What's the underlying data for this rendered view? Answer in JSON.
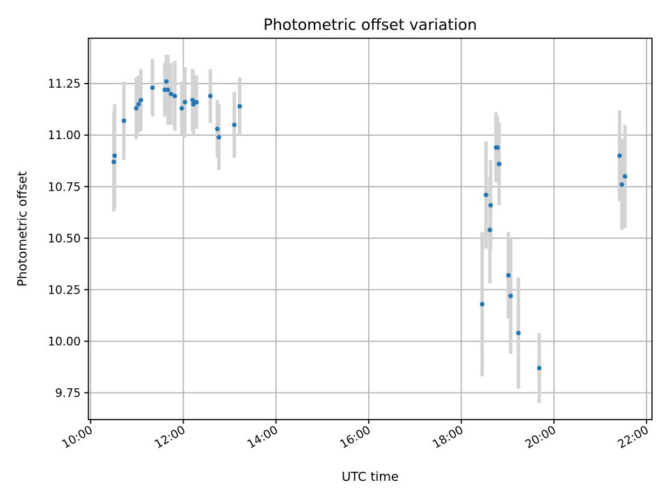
{
  "chart_data": {
    "type": "scatter",
    "title": "Photometric offset variation",
    "xlabel": "UTC time",
    "ylabel": "Photometric offset",
    "x_unit": "time of day (UTC), HH:MM",
    "xlim": [
      "09:57",
      "22:07"
    ],
    "ylim": [
      9.62,
      11.47
    ],
    "x_ticks": [
      "10:00",
      "12:00",
      "14:00",
      "16:00",
      "18:00",
      "20:00",
      "22:00"
    ],
    "y_ticks": [
      "9.75",
      "10.00",
      "10.25",
      "10.50",
      "10.75",
      "11.00",
      "11.25"
    ],
    "x_tick_rotation_deg": 30,
    "grid": true,
    "legend": "none",
    "colors": {
      "points": "#1f77b4",
      "error_bars": "#d3d3d3",
      "grid": "#b0b0b0"
    },
    "points": [
      {
        "t": "10:30",
        "y": 10.87,
        "err": 0.24
      },
      {
        "t": "10:31",
        "y": 10.9,
        "err": 0.25
      },
      {
        "t": "10:43",
        "y": 11.07,
        "err": 0.19
      },
      {
        "t": "10:59",
        "y": 11.13,
        "err": 0.15
      },
      {
        "t": "11:02",
        "y": 11.15,
        "err": 0.14
      },
      {
        "t": "11:05",
        "y": 11.17,
        "err": 0.15
      },
      {
        "t": "11:20",
        "y": 11.23,
        "err": 0.14
      },
      {
        "t": "11:36",
        "y": 11.22,
        "err": 0.13
      },
      {
        "t": "11:38",
        "y": 11.26,
        "err": 0.13
      },
      {
        "t": "11:40",
        "y": 11.22,
        "err": 0.17
      },
      {
        "t": "11:44",
        "y": 11.2,
        "err": 0.15
      },
      {
        "t": "11:49",
        "y": 11.19,
        "err": 0.17
      },
      {
        "t": "11:58",
        "y": 11.13,
        "err": 0.13
      },
      {
        "t": "12:02",
        "y": 11.16,
        "err": 0.17
      },
      {
        "t": "12:12",
        "y": 11.17,
        "err": 0.15
      },
      {
        "t": "12:13",
        "y": 11.15,
        "err": 0.15
      },
      {
        "t": "12:17",
        "y": 11.16,
        "err": 0.13
      },
      {
        "t": "12:35",
        "y": 11.19,
        "err": 0.13
      },
      {
        "t": "12:44",
        "y": 11.03,
        "err": 0.14
      },
      {
        "t": "12:46",
        "y": 10.99,
        "err": 0.16
      },
      {
        "t": "13:06",
        "y": 11.05,
        "err": 0.16
      },
      {
        "t": "13:13",
        "y": 11.14,
        "err": 0.14
      },
      {
        "t": "18:27",
        "y": 10.18,
        "err": 0.35
      },
      {
        "t": "18:32",
        "y": 10.71,
        "err": 0.26
      },
      {
        "t": "18:37",
        "y": 10.54,
        "err": 0.26
      },
      {
        "t": "18:38",
        "y": 10.66,
        "err": 0.22
      },
      {
        "t": "18:45",
        "y": 10.94,
        "err": 0.17
      },
      {
        "t": "18:47",
        "y": 10.94,
        "err": 0.15
      },
      {
        "t": "18:49",
        "y": 10.86,
        "err": 0.2
      },
      {
        "t": "19:01",
        "y": 10.32,
        "err": 0.21
      },
      {
        "t": "19:04",
        "y": 10.22,
        "err": 0.28
      },
      {
        "t": "19:14",
        "y": 10.04,
        "err": 0.27
      },
      {
        "t": "19:41",
        "y": 9.87,
        "err": 0.17
      },
      {
        "t": "21:25",
        "y": 10.9,
        "err": 0.22
      },
      {
        "t": "21:28",
        "y": 10.76,
        "err": 0.22
      },
      {
        "t": "21:32",
        "y": 10.8,
        "err": 0.25
      }
    ]
  }
}
